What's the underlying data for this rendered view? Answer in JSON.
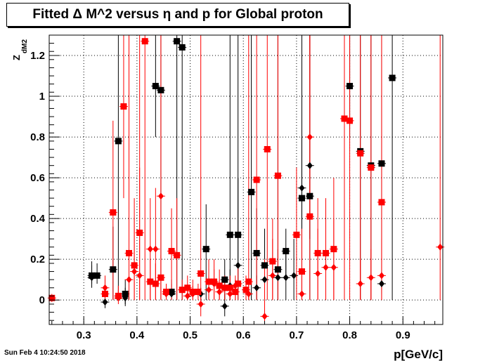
{
  "title": "Fitted Δ M^2 versus η and p for Global proton",
  "timestamp": "Sun Feb  4 10:24:50 2018",
  "chart_data": {
    "type": "scatter",
    "title": "Fitted Δ M^2 versus η and p for Global proton",
    "xlabel": "p[GeV/c]",
    "ylabel_main": "Z",
    "ylabel_sub": "dM2",
    "xlim": [
      0.235,
      0.975
    ],
    "ylim": [
      -0.12,
      1.3
    ],
    "grid": true,
    "x_ticks": [
      0.3,
      0.4,
      0.5,
      0.6,
      0.7,
      0.8,
      0.9
    ],
    "x_tick_labels": [
      "0.3",
      "0.4",
      "0.5",
      "0.6",
      "0.7",
      "0.8",
      "0.9"
    ],
    "y_ticks": [
      0,
      0.2,
      0.4,
      0.6,
      0.8,
      1.0,
      1.2
    ],
    "y_tick_labels": [
      "0",
      "0.2",
      "0.4",
      "0.6",
      "0.8",
      "1",
      "1.2"
    ],
    "series": [
      {
        "marker": "square",
        "color": "#000000",
        "points": [
          {
            "x": 0.315,
            "y": 0.12,
            "lo": 0.08,
            "hi": 0.19
          },
          {
            "x": 0.325,
            "y": 0.12,
            "lo": 0.08,
            "hi": 0.18
          },
          {
            "x": 0.355,
            "y": 0.15,
            "lo": 0.0,
            "hi": 0.36
          },
          {
            "x": 0.365,
            "y": 0.78,
            "lo": 0.0,
            "hi": 1.3
          },
          {
            "x": 0.378,
            "y": 0.03,
            "lo": -0.02,
            "hi": 0.1
          },
          {
            "x": 0.435,
            "y": 1.05,
            "lo": 0.8,
            "hi": 1.3
          },
          {
            "x": 0.445,
            "y": 1.03,
            "lo": 0.0,
            "hi": 1.3
          },
          {
            "x": 0.465,
            "y": 0.04,
            "lo": 0.0,
            "hi": 0.1
          },
          {
            "x": 0.475,
            "y": 1.27,
            "lo": 0.0,
            "hi": 1.3
          },
          {
            "x": 0.485,
            "y": 1.24,
            "lo": 0.0,
            "hi": 1.3
          },
          {
            "x": 0.53,
            "y": 0.25,
            "lo": 0.0,
            "hi": 0.47
          },
          {
            "x": 0.565,
            "y": 0.1,
            "lo": 0.0,
            "hi": 0.2
          },
          {
            "x": 0.575,
            "y": 0.32,
            "lo": 0.0,
            "hi": 1.3
          },
          {
            "x": 0.59,
            "y": 0.32,
            "lo": 0.05,
            "hi": 0.6
          },
          {
            "x": 0.615,
            "y": 0.53,
            "lo": 0.0,
            "hi": 1.3
          },
          {
            "x": 0.625,
            "y": 0.23,
            "lo": 0.0,
            "hi": 0.45
          },
          {
            "x": 0.64,
            "y": 0.17,
            "lo": 0.0,
            "hi": 0.35
          },
          {
            "x": 0.665,
            "y": 0.15,
            "lo": 0.0,
            "hi": 1.3
          },
          {
            "x": 0.68,
            "y": 0.24,
            "lo": 0.12,
            "hi": 0.35
          },
          {
            "x": 0.71,
            "y": 0.5,
            "lo": 0.0,
            "hi": 1.3
          },
          {
            "x": 0.725,
            "y": 0.51,
            "lo": 0.0,
            "hi": 1.3
          },
          {
            "x": 0.8,
            "y": 1.05,
            "lo": 0.8,
            "hi": 1.3
          },
          {
            "x": 0.82,
            "y": 0.73,
            "lo": 0.0,
            "hi": 1.3
          },
          {
            "x": 0.84,
            "y": 0.66,
            "lo": 0.0,
            "hi": 1.3
          },
          {
            "x": 0.86,
            "y": 0.67,
            "lo": 0.0,
            "hi": 1.3
          },
          {
            "x": 0.88,
            "y": 1.09,
            "lo": 0.0,
            "hi": 1.3
          }
        ]
      },
      {
        "marker": "diamond",
        "color": "#000000",
        "points": [
          {
            "x": 0.315,
            "y": 0.11,
            "lo": 0.06,
            "hi": 0.17
          },
          {
            "x": 0.34,
            "y": -0.01,
            "lo": -0.04,
            "hi": 0.05
          },
          {
            "x": 0.378,
            "y": 0.01,
            "lo": -0.03,
            "hi": 0.06
          },
          {
            "x": 0.465,
            "y": 0.03,
            "lo": 0.0,
            "hi": 0.08
          },
          {
            "x": 0.52,
            "y": 0.03,
            "lo": 0.0,
            "hi": 0.06
          },
          {
            "x": 0.565,
            "y": -0.03,
            "lo": -0.08,
            "hi": 0.03
          },
          {
            "x": 0.575,
            "y": 0.07,
            "lo": 0.0,
            "hi": 0.15
          },
          {
            "x": 0.59,
            "y": 0.17,
            "lo": 0.0,
            "hi": 1.3
          },
          {
            "x": 0.625,
            "y": 0.06,
            "lo": 0.0,
            "hi": 0.12
          },
          {
            "x": 0.64,
            "y": 0.1,
            "lo": 0.0,
            "hi": 0.3
          },
          {
            "x": 0.665,
            "y": 0.11,
            "lo": 0.0,
            "hi": 0.25
          },
          {
            "x": 0.68,
            "y": 0.11,
            "lo": 0.0,
            "hi": 0.25
          },
          {
            "x": 0.695,
            "y": 0.12,
            "lo": 0.0,
            "hi": 0.3
          },
          {
            "x": 0.71,
            "y": 0.55,
            "lo": 0.3,
            "hi": 0.8
          },
          {
            "x": 0.725,
            "y": 0.66,
            "lo": 0.3,
            "hi": 1.3
          },
          {
            "x": 0.86,
            "y": 0.08,
            "lo": 0.03,
            "hi": 0.14
          }
        ]
      },
      {
        "marker": "square",
        "color": "#ff0000",
        "points": [
          {
            "x": 0.24,
            "y": 0.01,
            "lo": -0.01,
            "hi": 0.03
          },
          {
            "x": 0.34,
            "y": 0.03,
            "lo": 0.0,
            "hi": 0.1
          },
          {
            "x": 0.355,
            "y": 0.43,
            "lo": 0.0,
            "hi": 0.88
          },
          {
            "x": 0.365,
            "y": 0.02,
            "lo": -0.02,
            "hi": 0.07
          },
          {
            "x": 0.375,
            "y": 0.95,
            "lo": 0.5,
            "hi": 1.3
          },
          {
            "x": 0.385,
            "y": 0.23,
            "lo": 0.0,
            "hi": 1.3
          },
          {
            "x": 0.395,
            "y": 0.17,
            "lo": 0.0,
            "hi": 0.5
          },
          {
            "x": 0.405,
            "y": 0.33,
            "lo": 0.0,
            "hi": 0.65
          },
          {
            "x": 0.415,
            "y": 1.27,
            "lo": 0.0,
            "hi": 1.3
          },
          {
            "x": 0.425,
            "y": 0.09,
            "lo": 0.0,
            "hi": 0.2
          },
          {
            "x": 0.435,
            "y": 0.08,
            "lo": 0.0,
            "hi": 0.18
          },
          {
            "x": 0.445,
            "y": 0.11,
            "lo": 0.0,
            "hi": 0.22
          },
          {
            "x": 0.455,
            "y": 0.04,
            "lo": 0.0,
            "hi": 0.08
          },
          {
            "x": 0.465,
            "y": 0.24,
            "lo": 0.0,
            "hi": 0.45
          },
          {
            "x": 0.475,
            "y": 0.22,
            "lo": 0.0,
            "hi": 0.5
          },
          {
            "x": 0.485,
            "y": 0.05,
            "lo": 0.0,
            "hi": 0.1
          },
          {
            "x": 0.495,
            "y": 0.06,
            "lo": 0.0,
            "hi": 0.12
          },
          {
            "x": 0.505,
            "y": 0.04,
            "lo": 0.0,
            "hi": 0.1
          },
          {
            "x": 0.515,
            "y": 0.04,
            "lo": 0.0,
            "hi": 0.08
          },
          {
            "x": 0.52,
            "y": 0.13,
            "lo": 0.0,
            "hi": 1.3
          },
          {
            "x": 0.535,
            "y": 0.09,
            "lo": 0.0,
            "hi": 0.2
          },
          {
            "x": 0.545,
            "y": 0.09,
            "lo": 0.0,
            "hi": 0.2
          },
          {
            "x": 0.555,
            "y": 0.07,
            "lo": 0.0,
            "hi": 0.15
          },
          {
            "x": 0.565,
            "y": 0.06,
            "lo": 0.0,
            "hi": 0.12
          },
          {
            "x": 0.575,
            "y": 0.06,
            "lo": 0.0,
            "hi": 0.12
          },
          {
            "x": 0.585,
            "y": 0.04,
            "lo": 0.0,
            "hi": 0.1
          },
          {
            "x": 0.59,
            "y": 0.08,
            "lo": 0.0,
            "hi": 0.18
          },
          {
            "x": 0.605,
            "y": 0.05,
            "lo": 0.0,
            "hi": 0.12
          },
          {
            "x": 0.61,
            "y": 0.09,
            "lo": 0.0,
            "hi": 1.3
          },
          {
            "x": 0.625,
            "y": 0.59,
            "lo": 0.0,
            "hi": 1.3
          },
          {
            "x": 0.645,
            "y": 0.74,
            "lo": 0.0,
            "hi": 1.3
          },
          {
            "x": 0.655,
            "y": 0.19,
            "lo": 0.0,
            "hi": 0.4
          },
          {
            "x": 0.665,
            "y": 0.61,
            "lo": 0.0,
            "hi": 1.3
          },
          {
            "x": 0.7,
            "y": 0.32,
            "lo": 0.0,
            "hi": 0.65
          },
          {
            "x": 0.71,
            "y": 0.14,
            "lo": 0.0,
            "hi": 0.35
          },
          {
            "x": 0.725,
            "y": 0.41,
            "lo": 0.0,
            "hi": 1.3
          },
          {
            "x": 0.74,
            "y": 0.23,
            "lo": 0.0,
            "hi": 0.5
          },
          {
            "x": 0.755,
            "y": 0.23,
            "lo": 0.0,
            "hi": 0.5
          },
          {
            "x": 0.77,
            "y": 0.25,
            "lo": 0.0,
            "hi": 0.6
          },
          {
            "x": 0.79,
            "y": 0.89,
            "lo": 0.0,
            "hi": 1.3
          },
          {
            "x": 0.8,
            "y": 0.88,
            "lo": 0.0,
            "hi": 1.3
          },
          {
            "x": 0.82,
            "y": 0.72,
            "lo": 0.0,
            "hi": 1.3
          },
          {
            "x": 0.84,
            "y": 0.65,
            "lo": 0.0,
            "hi": 1.3
          },
          {
            "x": 0.86,
            "y": 0.48,
            "lo": 0.0,
            "hi": 1.3
          }
        ]
      },
      {
        "marker": "diamond",
        "color": "#ff0000",
        "points": [
          {
            "x": 0.34,
            "y": 0.06,
            "lo": 0.0,
            "hi": 0.12
          },
          {
            "x": 0.365,
            "y": 0.01,
            "lo": 0.0,
            "hi": 0.05
          },
          {
            "x": 0.385,
            "y": 0.1,
            "lo": 0.0,
            "hi": 0.3
          },
          {
            "x": 0.395,
            "y": 0.14,
            "lo": 0.0,
            "hi": 0.4
          },
          {
            "x": 0.405,
            "y": 0.12,
            "lo": 0.0,
            "hi": 1.3
          },
          {
            "x": 0.425,
            "y": 0.25,
            "lo": 0.0,
            "hi": 0.5
          },
          {
            "x": 0.435,
            "y": 0.25,
            "lo": 0.0,
            "hi": 0.55
          },
          {
            "x": 0.445,
            "y": 0.51,
            "lo": 0.0,
            "hi": 1.3
          },
          {
            "x": 0.455,
            "y": 0.03,
            "lo": 0.0,
            "hi": 0.08
          },
          {
            "x": 0.495,
            "y": 0.02,
            "lo": 0.0,
            "hi": 0.06
          },
          {
            "x": 0.505,
            "y": 0.03,
            "lo": 0.0,
            "hi": 0.07
          },
          {
            "x": 0.52,
            "y": -0.02,
            "lo": -0.08,
            "hi": 0.05
          },
          {
            "x": 0.535,
            "y": 0.05,
            "lo": 0.0,
            "hi": 0.12
          },
          {
            "x": 0.545,
            "y": 0.08,
            "lo": 0.0,
            "hi": 0.15
          },
          {
            "x": 0.555,
            "y": 0.04,
            "lo": 0.0,
            "hi": 0.1
          },
          {
            "x": 0.575,
            "y": 0.03,
            "lo": 0.0,
            "hi": 0.08
          },
          {
            "x": 0.585,
            "y": 0.07,
            "lo": 0.0,
            "hi": 0.12
          },
          {
            "x": 0.61,
            "y": 0.03,
            "lo": 0.0,
            "hi": 0.08
          },
          {
            "x": 0.64,
            "y": -0.08,
            "lo": -0.12,
            "hi": 0.2
          },
          {
            "x": 0.655,
            "y": 0.12,
            "lo": 0.0,
            "hi": 0.3
          },
          {
            "x": 0.71,
            "y": 0.03,
            "lo": 0.0,
            "hi": 0.2
          },
          {
            "x": 0.725,
            "y": 0.8,
            "lo": 0.4,
            "hi": 1.3
          },
          {
            "x": 0.74,
            "y": 0.13,
            "lo": 0.0,
            "hi": 0.35
          },
          {
            "x": 0.755,
            "y": 0.16,
            "lo": 0.0,
            "hi": 0.4
          },
          {
            "x": 0.77,
            "y": 0.16,
            "lo": 0.0,
            "hi": 0.4
          },
          {
            "x": 0.82,
            "y": 0.08,
            "lo": 0.0,
            "hi": 0.2
          },
          {
            "x": 0.84,
            "y": 0.11,
            "lo": 0.0,
            "hi": 0.25
          },
          {
            "x": 0.86,
            "y": 0.12,
            "lo": 0.0,
            "hi": 0.3
          },
          {
            "x": 0.97,
            "y": 0.26,
            "lo": 0.0,
            "hi": 1.3
          }
        ]
      }
    ]
  }
}
